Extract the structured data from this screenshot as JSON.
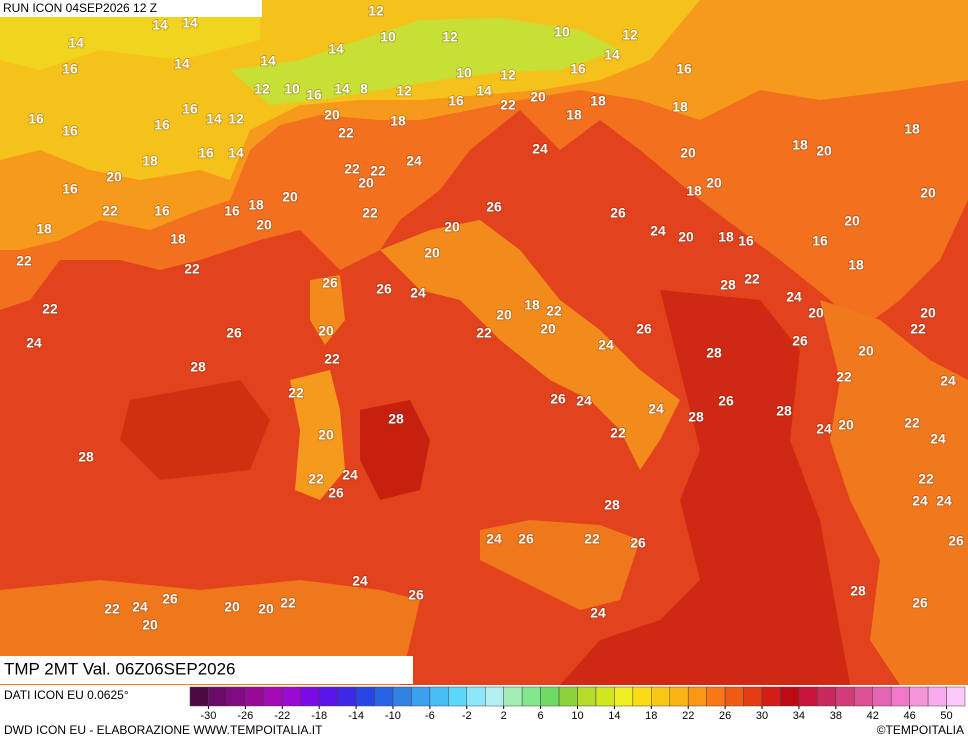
{
  "header": {
    "run": "RUN ICON 04SEP2026 12 Z",
    "validity": "TMP 2MT Val. 06Z06SEP2026"
  },
  "footer": {
    "data_source": "DATI ICON EU 0.0625°",
    "credit": "DWD ICON EU - ELABORAZIONE WWW.TEMPOITALIA.IT",
    "copyright": "©TEMPOITALIA"
  },
  "colorbar": {
    "bounds": [
      -32,
      -30,
      -28,
      -26,
      -24,
      -22,
      -20,
      -18,
      -16,
      -14,
      -12,
      -10,
      -8,
      -6,
      -4,
      -2,
      0,
      2,
      4,
      6,
      8,
      10,
      12,
      14,
      16,
      18,
      20,
      22,
      24,
      26,
      28,
      30,
      32,
      34,
      36,
      38,
      40,
      42,
      44,
      46,
      48,
      50,
      52
    ],
    "colors": [
      "#4a0b42",
      "#6b0a6b",
      "#820a82",
      "#970a97",
      "#a40ab4",
      "#9a0ad2",
      "#7d0ae6",
      "#5a14e6",
      "#3c28e6",
      "#2846e6",
      "#2864e6",
      "#3282e6",
      "#3ca0f0",
      "#46bef5",
      "#5ad7fa",
      "#8ce6fa",
      "#b4f0f0",
      "#a0f0b4",
      "#82e68c",
      "#6edc64",
      "#8cd23c",
      "#b4dc28",
      "#d2e61e",
      "#f0f01e",
      "#fadc14",
      "#fac814",
      "#fab414",
      "#fa9614",
      "#fa7814",
      "#f05a14",
      "#e63c14",
      "#d21e14",
      "#be0a14",
      "#c8143c",
      "#c8285a",
      "#d23c78",
      "#dc5096",
      "#e664b4",
      "#f078c8",
      "#f596dc",
      "#faaaf0",
      "#fac8fa"
    ],
    "ticks": [
      -30,
      -26,
      -22,
      -18,
      -14,
      -10,
      -6,
      -2,
      2,
      6,
      10,
      14,
      18,
      22,
      26,
      30,
      34,
      38,
      42,
      46,
      50
    ]
  },
  "map_labels": [
    12,
    14,
    14,
    14,
    16,
    10,
    12,
    10,
    12,
    14,
    14,
    14,
    14,
    16,
    16,
    10,
    12,
    12,
    10,
    16,
    14,
    8,
    12,
    16,
    14,
    22,
    20,
    18,
    18,
    16,
    16,
    16,
    16,
    14,
    12,
    20,
    18,
    22,
    18,
    18,
    16,
    14,
    24,
    18,
    20,
    20,
    18,
    22,
    24,
    20,
    22,
    20,
    16,
    20,
    18,
    20,
    22,
    16,
    18,
    20,
    16,
    26,
    22,
    26,
    18,
    20,
    20,
    24,
    20,
    18,
    16,
    16,
    20,
    18,
    22,
    20,
    22,
    18,
    22,
    26,
    26,
    24,
    28,
    24,
    22,
    18,
    22,
    20,
    20,
    20,
    22,
    20,
    26,
    20,
    22,
    26,
    24,
    26,
    20,
    28,
    22,
    24,
    28,
    22,
    24,
    22,
    26,
    24,
    24,
    28,
    26,
    28,
    28,
    24,
    20,
    22,
    24,
    20,
    22,
    28,
    22,
    24,
    26,
    22,
    24,
    24,
    28,
    24,
    26,
    22,
    26,
    26,
    24,
    26,
    28,
    26,
    24,
    22,
    20,
    20,
    22,
    20,
    24,
    26
  ]
}
